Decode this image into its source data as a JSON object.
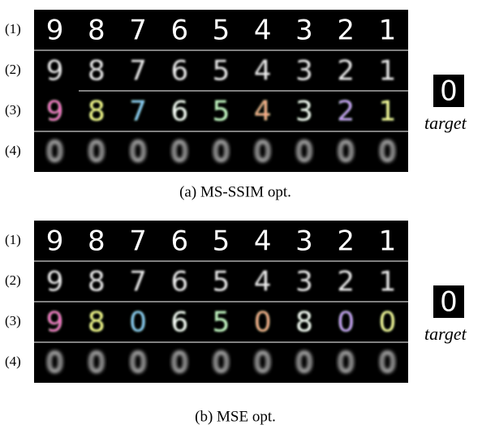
{
  "panels": [
    {
      "caption": "(a) MS-SSIM opt.",
      "target_label": "target",
      "target_digit": "0",
      "rows": [
        {
          "label": "(1)",
          "cells": [
            "9",
            "8",
            "7",
            "6",
            "5",
            "4",
            "3",
            "2",
            "1"
          ]
        },
        {
          "label": "(2)",
          "cells": [
            "9",
            "8",
            "7",
            "6",
            "5",
            "4",
            "3",
            "2",
            "1"
          ]
        },
        {
          "label": "(3)",
          "cells": [
            "9",
            "8",
            "7",
            "6",
            "5",
            "4",
            "3",
            "2",
            "1"
          ]
        },
        {
          "label": "(4)",
          "cells": [
            "0",
            "0",
            "0",
            "0",
            "0",
            "0",
            "0",
            "0",
            "0"
          ]
        }
      ]
    },
    {
      "caption": "(b) MSE opt.",
      "target_label": "target",
      "target_digit": "0",
      "rows": [
        {
          "label": "(1)",
          "cells": [
            "9",
            "8",
            "7",
            "6",
            "5",
            "4",
            "3",
            "2",
            "1"
          ]
        },
        {
          "label": "(2)",
          "cells": [
            "9",
            "8",
            "7",
            "6",
            "5",
            "4",
            "3",
            "2",
            "1"
          ]
        },
        {
          "label": "(3)",
          "cells": [
            "9",
            "8",
            "0",
            "6",
            "5",
            "0",
            "8",
            "0",
            "0"
          ]
        },
        {
          "label": "(4)",
          "cells": [
            "0",
            "0",
            "0",
            "0",
            "0",
            "0",
            "0",
            "0",
            "0"
          ]
        }
      ]
    }
  ]
}
